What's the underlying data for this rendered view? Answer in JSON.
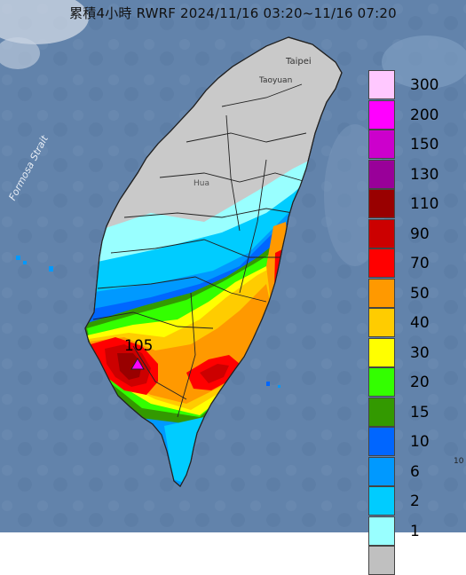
{
  "title": "累積4小時 RWRF 2024/11/16 03:20~11/16 07:20",
  "map_labels": {
    "strait": "Formosa Strait",
    "taipei": "Taipei",
    "taoyuan": "Taoyuan",
    "hualien_partial": "Hua",
    "max_value": "105",
    "edge_mark": "10"
  },
  "colors": {
    "sea": "#5f7fa8",
    "land": "#c9c9c9"
  },
  "legend": [
    {
      "label": "300",
      "color": "#ffc8ff"
    },
    {
      "label": "200",
      "color": "#ff00ff"
    },
    {
      "label": "150",
      "color": "#cc00cc"
    },
    {
      "label": "130",
      "color": "#990099"
    },
    {
      "label": "110",
      "color": "#990000"
    },
    {
      "label": "90",
      "color": "#cc0000"
    },
    {
      "label": "70",
      "color": "#ff0000"
    },
    {
      "label": "50",
      "color": "#ff9900"
    },
    {
      "label": "40",
      "color": "#ffcc00"
    },
    {
      "label": "30",
      "color": "#ffff00"
    },
    {
      "label": "20",
      "color": "#33ff00"
    },
    {
      "label": "15",
      "color": "#339900"
    },
    {
      "label": "10",
      "color": "#0066ff"
    },
    {
      "label": "6",
      "color": "#0099ff"
    },
    {
      "label": "2",
      "color": "#00ccff"
    },
    {
      "label": "1",
      "color": "#99ffff"
    },
    {
      "label": "",
      "color": "#c0c0c0"
    }
  ]
}
